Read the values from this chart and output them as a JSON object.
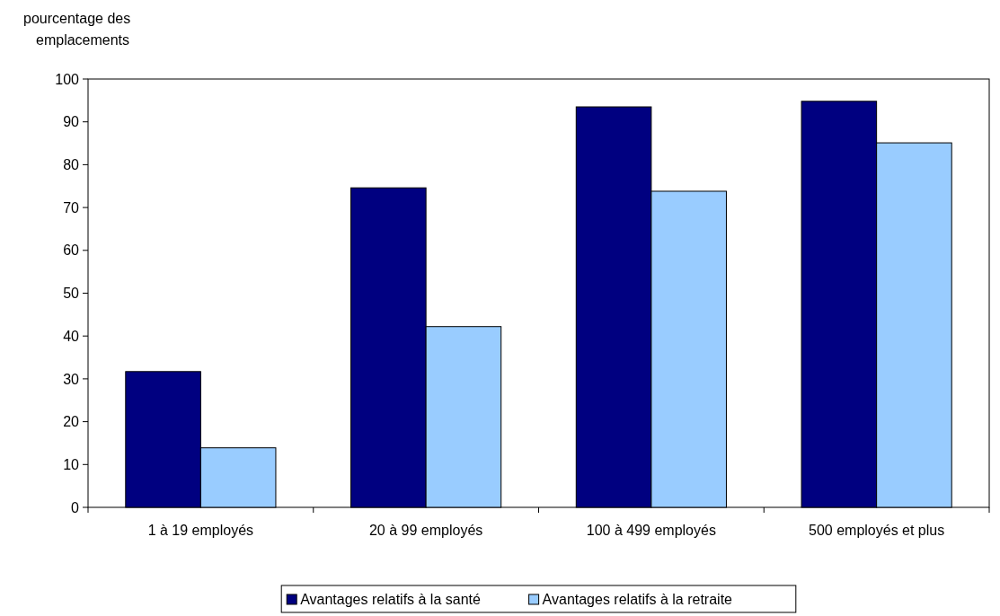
{
  "chart_data": {
    "type": "bar",
    "ylabel": "pourcentage des emplacements",
    "categories": [
      "1 à 19 employés",
      "20 à 99 employés",
      "100 à 499 employés",
      "500 employés et plus"
    ],
    "series": [
      {
        "name": "Avantages relatifs à la santé",
        "color": "#000080",
        "values": [
          31.7,
          74.6,
          93.5,
          94.8
        ]
      },
      {
        "name": "Avantages relatifs à la retraite",
        "color": "#99ccff",
        "values": [
          13.9,
          42.2,
          73.8,
          85.1
        ]
      }
    ],
    "ylim": [
      0,
      100
    ],
    "yticks": [
      0,
      10,
      20,
      30,
      40,
      50,
      60,
      70,
      80,
      90,
      100
    ],
    "grid": false,
    "legend": "bottom"
  }
}
